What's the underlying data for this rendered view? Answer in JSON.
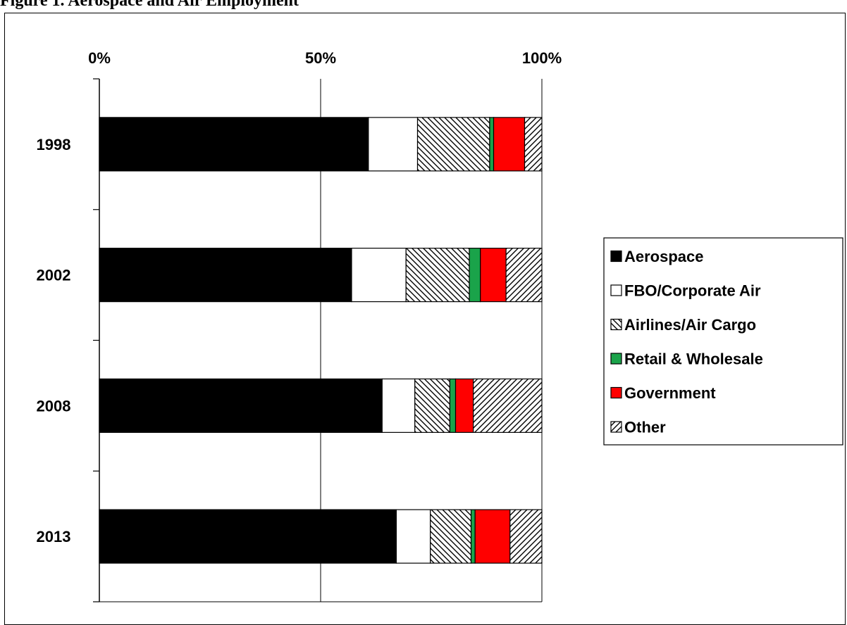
{
  "chart_data": {
    "type": "bar",
    "orientation": "horizontal",
    "stacked": "percent",
    "title": "Figure 1. Aerospace and Air Employment",
    "xlabel": "",
    "ylabel": "",
    "xlim": [
      0,
      100
    ],
    "x_ticks": [
      "0%",
      "50%",
      "100%"
    ],
    "x_axis_position": "top",
    "grid": "vertical",
    "legend_position": "right",
    "categories": [
      "1998",
      "2002",
      "2008",
      "2013"
    ],
    "series": [
      {
        "name": "Aerospace",
        "fill": "solid",
        "color": "#000000",
        "values": [
          60.8,
          57.0,
          63.9,
          67.1
        ]
      },
      {
        "name": "FBO/Corporate Air",
        "fill": "solid",
        "color": "#ffffff",
        "values": [
          11.1,
          12.3,
          7.4,
          7.7
        ]
      },
      {
        "name": "Airlines/Air Cargo",
        "fill": "hatch-back",
        "color": "#000000",
        "values": [
          16.3,
          14.3,
          7.9,
          9.2
        ]
      },
      {
        "name": "Retail & Wholesale",
        "fill": "solid",
        "color": "#1aa34a",
        "values": [
          0.9,
          2.5,
          1.3,
          0.9
        ]
      },
      {
        "name": "Government",
        "fill": "solid",
        "color": "#ff0000",
        "values": [
          7.0,
          5.8,
          4.0,
          7.9
        ]
      },
      {
        "name": "Other",
        "fill": "hatch-forward",
        "color": "#000000",
        "values": [
          3.9,
          8.1,
          15.5,
          7.2
        ]
      }
    ]
  }
}
